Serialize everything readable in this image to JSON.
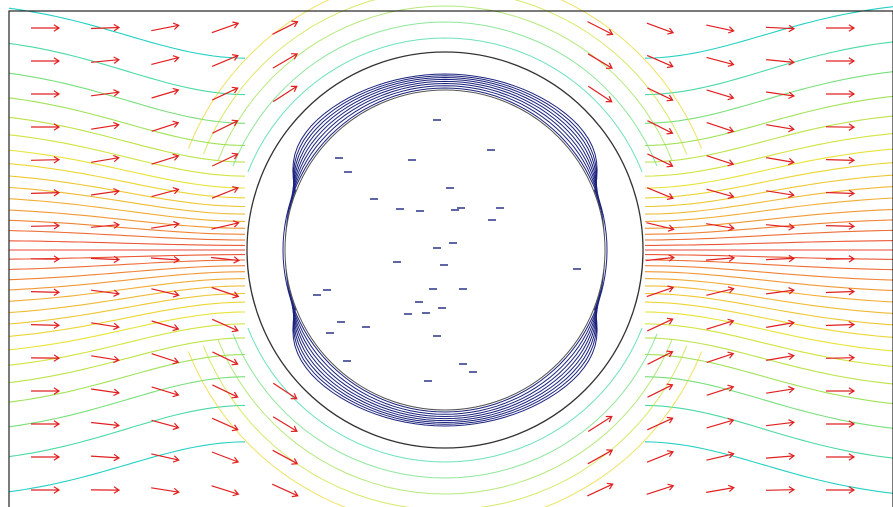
{
  "figure": {
    "kind": "field-plot",
    "description_shown_text": "",
    "frame": true,
    "colors": {
      "background": "#ffffff",
      "frame": "#222222",
      "outer_circle": "#333333",
      "inner_circle": "#555555",
      "arrows": "#e02020",
      "interior_contours": "#1c237e",
      "interior_dashes": "#1c237e",
      "colormap": [
        "#00c8c8",
        "#40d890",
        "#9ee040",
        "#e8e020",
        "#f0a020",
        "#e83020"
      ]
    },
    "icons": {
      "arrow": "field-arrow-icon",
      "dash": "charge-dash-icon"
    },
    "arrow_direction": "right",
    "has_text_labels": false
  }
}
